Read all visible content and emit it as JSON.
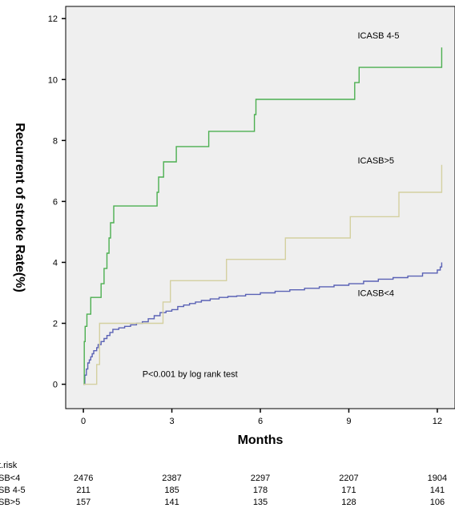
{
  "chart_data": {
    "type": "line",
    "xlabel": "Months",
    "ylabel": "Recurrent of stroke Rate(%)",
    "xlim": [
      -0.6,
      12.6
    ],
    "ylim": [
      -0.8,
      12.4
    ],
    "x_ticks": [
      0,
      3,
      6,
      9,
      12
    ],
    "y_ticks": [
      0,
      2,
      4,
      6,
      8,
      10,
      12
    ],
    "grid": false,
    "annotation": "P<0.001 by log rank test",
    "series": [
      {
        "name": "ICASB<4",
        "color": "#5a62b5",
        "label_pos": [
          9.3,
          3.0
        ],
        "points": [
          [
            0,
            0
          ],
          [
            0.05,
            0.3
          ],
          [
            0.1,
            0.5
          ],
          [
            0.15,
            0.7
          ],
          [
            0.2,
            0.8
          ],
          [
            0.25,
            0.9
          ],
          [
            0.3,
            1.0
          ],
          [
            0.35,
            1.1
          ],
          [
            0.45,
            1.2
          ],
          [
            0.5,
            1.3
          ],
          [
            0.6,
            1.4
          ],
          [
            0.7,
            1.5
          ],
          [
            0.8,
            1.6
          ],
          [
            0.9,
            1.7
          ],
          [
            1.0,
            1.8
          ],
          [
            1.2,
            1.85
          ],
          [
            1.4,
            1.9
          ],
          [
            1.6,
            1.95
          ],
          [
            1.8,
            2.0
          ],
          [
            2.0,
            2.05
          ],
          [
            2.2,
            2.15
          ],
          [
            2.4,
            2.25
          ],
          [
            2.6,
            2.35
          ],
          [
            2.8,
            2.4
          ],
          [
            3.0,
            2.45
          ],
          [
            3.2,
            2.55
          ],
          [
            3.4,
            2.6
          ],
          [
            3.6,
            2.65
          ],
          [
            3.8,
            2.7
          ],
          [
            4.0,
            2.75
          ],
          [
            4.3,
            2.8
          ],
          [
            4.6,
            2.85
          ],
          [
            4.9,
            2.88
          ],
          [
            5.2,
            2.9
          ],
          [
            5.5,
            2.95
          ],
          [
            6.0,
            3.0
          ],
          [
            6.5,
            3.05
          ],
          [
            7.0,
            3.1
          ],
          [
            7.5,
            3.15
          ],
          [
            8.0,
            3.2
          ],
          [
            8.5,
            3.25
          ],
          [
            9.0,
            3.3
          ],
          [
            9.5,
            3.38
          ],
          [
            10.0,
            3.45
          ],
          [
            10.5,
            3.5
          ],
          [
            11.0,
            3.55
          ],
          [
            11.5,
            3.65
          ],
          [
            12.0,
            3.75
          ],
          [
            12.1,
            3.85
          ],
          [
            12.15,
            4.0
          ]
        ]
      },
      {
        "name": "ICASB 4-5",
        "color": "#4caf50",
        "label_pos": [
          9.3,
          11.45
        ],
        "points": [
          [
            0,
            0
          ],
          [
            0.03,
            1.4
          ],
          [
            0.06,
            1.9
          ],
          [
            0.12,
            2.3
          ],
          [
            0.25,
            2.85
          ],
          [
            0.6,
            3.3
          ],
          [
            0.7,
            3.8
          ],
          [
            0.8,
            4.3
          ],
          [
            0.87,
            4.8
          ],
          [
            0.92,
            5.3
          ],
          [
            1.03,
            5.85
          ],
          [
            2.5,
            6.3
          ],
          [
            2.55,
            6.8
          ],
          [
            2.72,
            7.3
          ],
          [
            3.15,
            7.8
          ],
          [
            4.25,
            8.3
          ],
          [
            5.8,
            8.85
          ],
          [
            5.85,
            9.35
          ],
          [
            9.2,
            9.9
          ],
          [
            9.35,
            10.4
          ],
          [
            12.15,
            11.05
          ]
        ]
      },
      {
        "name": "ICASB>5",
        "color": "#d4d0a0",
        "label_pos": [
          9.3,
          7.35
        ],
        "points": [
          [
            0,
            0
          ],
          [
            0.45,
            0.65
          ],
          [
            0.55,
            2.0
          ],
          [
            2.7,
            2.7
          ],
          [
            2.95,
            3.4
          ],
          [
            4.85,
            4.1
          ],
          [
            6.85,
            4.8
          ],
          [
            9.05,
            5.5
          ],
          [
            10.7,
            6.3
          ],
          [
            12.15,
            7.2
          ]
        ]
      }
    ]
  },
  "risk_table": {
    "header": "t.risk",
    "x": [
      0,
      3,
      6,
      9,
      12
    ],
    "rows": [
      {
        "label": "SB<4",
        "values": [
          "2476",
          "2387",
          "2297",
          "2207",
          "1904"
        ]
      },
      {
        "label": "SB 4-5",
        "values": [
          "211",
          "185",
          "178",
          "171",
          "141"
        ]
      },
      {
        "label": "SB>5",
        "values": [
          "157",
          "141",
          "135",
          "128",
          "106"
        ]
      }
    ]
  },
  "colors": {
    "plot_background": "#efefef",
    "frame": "#000000"
  }
}
